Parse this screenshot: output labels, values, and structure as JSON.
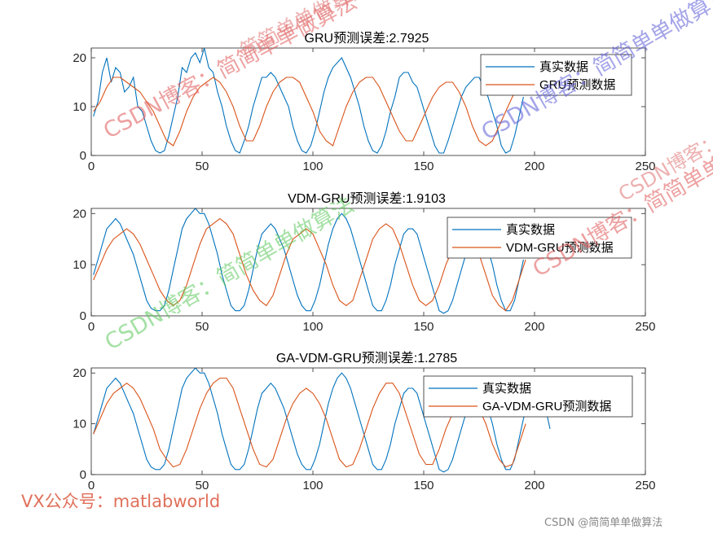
{
  "chart_data": [
    {
      "type": "line",
      "title": "GRU预测误差:2.7925",
      "xlim": [
        0,
        250
      ],
      "ylim": [
        0,
        22
      ],
      "xticks": [
        0,
        50,
        100,
        150,
        200,
        250
      ],
      "yticks": [
        0,
        10,
        20
      ],
      "legend_position": "top-right",
      "series": [
        {
          "name": "真实数据",
          "color": "#0072BD",
          "x": [
            1,
            3,
            5,
            7,
            9,
            11,
            13,
            15,
            17,
            19,
            21,
            23,
            25,
            27,
            29,
            31,
            33,
            35,
            37,
            39,
            41,
            43,
            45,
            47,
            49,
            51,
            53,
            55,
            57,
            59,
            61,
            63,
            65,
            67,
            69,
            71,
            73,
            75,
            77,
            79,
            81,
            83,
            85,
            87,
            89,
            91,
            93,
            95,
            97,
            99,
            101,
            103,
            105,
            107,
            109,
            111,
            113,
            115,
            117,
            119,
            121,
            123,
            125,
            127,
            129,
            131,
            133,
            135,
            137,
            139,
            141,
            143,
            145,
            147,
            149,
            151,
            153,
            155,
            157,
            159,
            161,
            163,
            165,
            167,
            169,
            171,
            173,
            175,
            177,
            179,
            181,
            183,
            185,
            187,
            189,
            191,
            193,
            195
          ],
          "y": [
            8,
            11,
            17,
            20,
            15,
            18,
            17,
            13,
            14,
            16,
            10,
            9,
            6,
            3,
            1,
            0.5,
            1,
            4,
            8,
            12,
            18,
            17,
            20,
            21,
            19,
            22,
            18,
            17,
            13,
            10,
            6,
            3,
            1,
            0.5,
            3,
            6,
            10,
            13,
            16,
            16,
            17,
            16,
            14,
            12,
            10,
            6,
            3,
            1,
            0.5,
            2,
            5,
            9,
            13,
            16,
            18,
            19,
            20,
            18,
            16,
            13,
            10,
            6,
            3,
            1,
            0.5,
            2,
            5,
            9,
            12,
            16,
            17,
            17,
            15,
            14,
            11,
            8,
            5,
            2,
            0.5,
            0.5,
            3,
            6,
            9,
            12,
            14,
            15,
            16,
            16,
            14,
            12,
            9,
            6,
            2,
            0.5,
            1,
            4,
            8,
            12
          ]
        },
        {
          "name": "GRU预测数据",
          "color": "#D95319",
          "x": [
            1,
            4,
            7,
            10,
            13,
            16,
            19,
            22,
            25,
            28,
            31,
            34,
            37,
            40,
            43,
            46,
            49,
            52,
            55,
            58,
            61,
            64,
            67,
            70,
            73,
            76,
            79,
            82,
            85,
            88,
            91,
            94,
            97,
            100,
            103,
            106,
            109,
            112,
            115,
            118,
            121,
            124,
            127,
            130,
            133,
            136,
            139,
            142,
            145,
            148,
            151,
            154,
            157,
            160,
            163,
            166,
            169,
            172,
            175,
            178,
            181,
            184,
            187,
            190,
            193,
            196
          ],
          "y": [
            9,
            11,
            14,
            16,
            16,
            15,
            14,
            13,
            11,
            9,
            6,
            3,
            2,
            5,
            9,
            12,
            14,
            15,
            16,
            15,
            13,
            10,
            6,
            3,
            3,
            6,
            10,
            13,
            15,
            16,
            16,
            15,
            12,
            9,
            5,
            3,
            2,
            6,
            10,
            13,
            15,
            16,
            16,
            14,
            11,
            8,
            5,
            3,
            3,
            6,
            9,
            12,
            14,
            15,
            15,
            13,
            10,
            6,
            3,
            2,
            3,
            6,
            9,
            12,
            14,
            15
          ]
        }
      ]
    },
    {
      "type": "line",
      "title": "VDM-GRU预测误差:1.9103",
      "xlim": [
        0,
        250
      ],
      "ylim": [
        0,
        21
      ],
      "xticks": [
        0,
        50,
        100,
        150,
        200,
        250
      ],
      "yticks": [
        0,
        10,
        20
      ],
      "legend_position": "top-right",
      "series": [
        {
          "name": "真实数据",
          "color": "#0072BD",
          "x": [
            1,
            3,
            5,
            7,
            9,
            11,
            13,
            15,
            17,
            19,
            21,
            23,
            25,
            27,
            29,
            31,
            33,
            35,
            37,
            39,
            41,
            43,
            45,
            47,
            49,
            51,
            53,
            55,
            57,
            59,
            61,
            63,
            65,
            67,
            69,
            71,
            73,
            75,
            77,
            79,
            81,
            83,
            85,
            87,
            89,
            91,
            93,
            95,
            97,
            99,
            101,
            103,
            105,
            107,
            109,
            111,
            113,
            115,
            117,
            119,
            121,
            123,
            125,
            127,
            129,
            131,
            133,
            135,
            137,
            139,
            141,
            143,
            145,
            147,
            149,
            151,
            153,
            155,
            157,
            159,
            161,
            163,
            165,
            167,
            169,
            171,
            173,
            175,
            177,
            179,
            181,
            183,
            185,
            187,
            189,
            191,
            193,
            195
          ],
          "y": [
            8,
            11,
            14,
            17,
            18,
            19,
            18,
            16,
            14,
            12,
            9,
            6,
            3,
            1.5,
            1,
            1,
            2,
            5,
            9,
            13,
            17,
            19,
            20,
            21,
            20,
            20,
            18,
            15,
            12,
            8,
            5,
            2,
            1,
            1,
            2,
            5,
            9,
            13,
            16,
            17,
            18,
            17,
            15,
            13,
            10,
            7,
            4,
            2,
            1,
            1,
            3,
            6,
            10,
            14,
            17,
            19,
            20,
            19,
            17,
            14,
            11,
            8,
            5,
            2,
            1,
            1,
            3,
            6,
            10,
            13,
            16,
            17,
            17,
            16,
            13,
            10,
            7,
            4,
            1,
            0.5,
            1,
            3,
            6,
            9,
            12,
            14,
            15,
            16,
            15,
            13,
            10,
            6,
            3,
            1,
            1,
            3,
            7,
            11
          ]
        },
        {
          "name": "VDM-GRU预测数据",
          "color": "#D95319",
          "x": [
            1,
            4,
            7,
            10,
            13,
            16,
            19,
            22,
            25,
            28,
            31,
            34,
            37,
            40,
            43,
            46,
            49,
            52,
            55,
            58,
            61,
            64,
            67,
            70,
            73,
            76,
            79,
            82,
            85,
            88,
            91,
            94,
            97,
            100,
            103,
            106,
            109,
            112,
            115,
            118,
            121,
            124,
            127,
            130,
            133,
            136,
            139,
            142,
            145,
            148,
            151,
            154,
            157,
            160,
            163,
            166,
            169,
            172,
            175,
            178,
            181,
            184,
            187,
            190,
            193,
            196
          ],
          "y": [
            7,
            10,
            13,
            15,
            16,
            17,
            16,
            14,
            11,
            8,
            5,
            3,
            2,
            3,
            6,
            10,
            14,
            17,
            18,
            19,
            18,
            16,
            12,
            8,
            5,
            3,
            2,
            4,
            8,
            12,
            15,
            16,
            17,
            16,
            13,
            10,
            6,
            3,
            2,
            3,
            7,
            11,
            15,
            17,
            18,
            17,
            14,
            10,
            6,
            3,
            2,
            3,
            6,
            10,
            13,
            15,
            16,
            15,
            12,
            8,
            4,
            2,
            1,
            3,
            7,
            11
          ]
        }
      ]
    },
    {
      "type": "line",
      "title": "GA-VDM-GRU预测误差:1.2785",
      "xlim": [
        0,
        250
      ],
      "ylim": [
        0,
        21
      ],
      "xticks": [
        0,
        50,
        100,
        150,
        200,
        250
      ],
      "yticks": [
        0,
        10,
        20
      ],
      "legend_position": "top-right",
      "series": [
        {
          "name": "真实数据",
          "color": "#0072BD",
          "x": [
            1,
            3,
            5,
            7,
            9,
            11,
            13,
            15,
            17,
            19,
            21,
            23,
            25,
            27,
            29,
            31,
            33,
            35,
            37,
            39,
            41,
            43,
            45,
            47,
            49,
            51,
            53,
            55,
            57,
            59,
            61,
            63,
            65,
            67,
            69,
            71,
            73,
            75,
            77,
            79,
            81,
            83,
            85,
            87,
            89,
            91,
            93,
            95,
            97,
            99,
            101,
            103,
            105,
            107,
            109,
            111,
            113,
            115,
            117,
            119,
            121,
            123,
            125,
            127,
            129,
            131,
            133,
            135,
            137,
            139,
            141,
            143,
            145,
            147,
            149,
            151,
            153,
            155,
            157,
            159,
            161,
            163,
            165,
            167,
            169,
            171,
            173,
            175,
            177,
            179,
            181,
            183,
            185,
            187,
            189,
            191,
            193,
            195,
            197,
            199,
            201,
            203,
            205,
            207
          ],
          "y": [
            8,
            11,
            14,
            17,
            18,
            19,
            18,
            16,
            14,
            12,
            9,
            6,
            3,
            1.5,
            1,
            1,
            2,
            5,
            9,
            13,
            17,
            19,
            20,
            21,
            20,
            20,
            18,
            15,
            12,
            8,
            5,
            2,
            1,
            1,
            2,
            5,
            9,
            13,
            16,
            17,
            18,
            17,
            15,
            13,
            10,
            7,
            4,
            2,
            1,
            1,
            3,
            6,
            10,
            14,
            17,
            19,
            20,
            19,
            17,
            14,
            11,
            8,
            5,
            2,
            1,
            1,
            3,
            6,
            10,
            13,
            16,
            17,
            17,
            16,
            13,
            10,
            7,
            4,
            1,
            0.5,
            1,
            3,
            6,
            9,
            12,
            14,
            15,
            16,
            15,
            13,
            10,
            6,
            3,
            1,
            1,
            3,
            7,
            11,
            14,
            16,
            17,
            16,
            13,
            9
          ]
        },
        {
          "name": "GA-VDM-GRU预测数据",
          "color": "#D95319",
          "x": [
            1,
            4,
            7,
            10,
            13,
            16,
            19,
            22,
            25,
            28,
            31,
            34,
            37,
            40,
            43,
            46,
            49,
            52,
            55,
            58,
            61,
            64,
            67,
            70,
            73,
            76,
            79,
            82,
            85,
            88,
            91,
            94,
            97,
            100,
            103,
            106,
            109,
            112,
            115,
            118,
            121,
            124,
            127,
            130,
            133,
            136,
            139,
            142,
            145,
            148,
            151,
            154,
            157,
            160,
            163,
            166,
            169,
            172,
            175,
            178,
            181,
            184,
            187,
            190,
            193,
            196
          ],
          "y": [
            8,
            11,
            14,
            16,
            17,
            18,
            17,
            15,
            12,
            9,
            5,
            3,
            1.5,
            2,
            5,
            9,
            13,
            16,
            18,
            19,
            19,
            17,
            13,
            9,
            5,
            2,
            1.5,
            3,
            7,
            11,
            14,
            16,
            17,
            16,
            14,
            11,
            7,
            3,
            1.5,
            2,
            5,
            9,
            13,
            16,
            18,
            18,
            16,
            12,
            8,
            4,
            2,
            2,
            5,
            9,
            12,
            14,
            15,
            15,
            13,
            10,
            6,
            3,
            1.5,
            2,
            6,
            10
          ]
        }
      ]
    }
  ],
  "watermarks": [
    {
      "text": "CSDN博客：简简单单做算法",
      "color": "#e05555"
    },
    {
      "text": "简简单单做算法",
      "color": "#e07070"
    },
    {
      "text": "CSDN博客：简简单单做算法",
      "color": "#5a5ad8"
    },
    {
      "text": "CSDN博客：简简单单做算法",
      "color": "#e05555"
    },
    {
      "text": "CSDN博客：简简单单做算法",
      "color": "#5ac85a"
    },
    {
      "text": "CSDN博客：简简单单做算法",
      "color": "#e07070"
    }
  ],
  "footer": {
    "vx": "VX公众号：matlabworld",
    "vx_color": "#e0705a",
    "credit": "CSDN @简简单单做算法"
  }
}
